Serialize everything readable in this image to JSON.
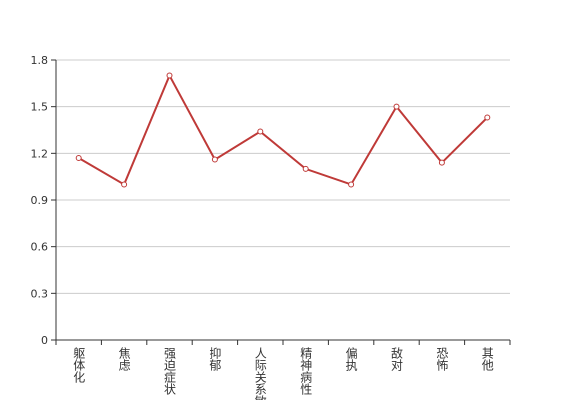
{
  "chart_data": {
    "type": "line",
    "categories": [
      "躯体化",
      "焦虑",
      "强迫症状",
      "抑郁",
      "人际关系敏感",
      "精神病性",
      "偏执",
      "敌对",
      "恐怖",
      "其他"
    ],
    "values": [
      1.17,
      1.0,
      1.7,
      1.16,
      1.34,
      1.1,
      1.0,
      1.5,
      1.14,
      1.43
    ],
    "color": "#bf3a38",
    "ylim": [
      0,
      1.8
    ],
    "yticks": [
      0,
      0.3,
      0.6,
      0.9,
      1.2,
      1.5,
      1.8
    ],
    "grid": true
  }
}
